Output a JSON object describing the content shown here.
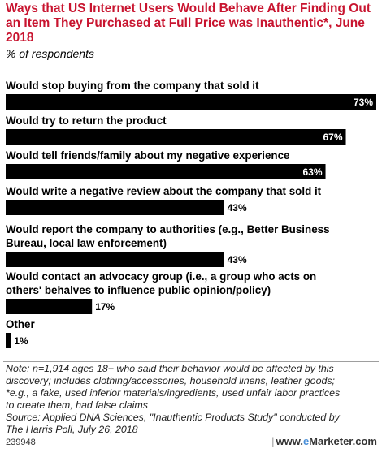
{
  "header": {
    "title": "Ways that US Internet Users Would Behave After Finding Out an Item They Purchased at Full Price was Inauthentic*, June 2018",
    "subtitle": "% of respondents"
  },
  "chart_data": {
    "type": "bar",
    "orientation": "horizontal",
    "categories": [
      [
        "Would stop buying from the company that sold it"
      ],
      [
        "Would try to return the product"
      ],
      [
        "Would tell friends/family about my negative experience"
      ],
      [
        "Would write a negative review about the company that sold it"
      ],
      [
        "Would report the company to authorities (e.g., Better Business",
        "Bureau, local law enforcement)"
      ],
      [
        "Would contact an advocacy group (i.e., a group who acts on",
        "others' behalves to influence public opinion/policy)"
      ],
      [
        "Other"
      ]
    ],
    "values": [
      73,
      67,
      63,
      43,
      43,
      17,
      1
    ],
    "value_labels": [
      "73%",
      "67%",
      "63%",
      "43%",
      "43%",
      "17%",
      "1%"
    ],
    "xlim": [
      0,
      73
    ],
    "bar_color": "#000000",
    "grid": false,
    "legend": "none"
  },
  "footer": {
    "note_lines": [
      "Note: n=1,914 ages 18+ who said their behavior would be affected by this",
      "discovery; includes clothing/accessories, household linens, leather goods;",
      "*e.g., a fake, used inferior materials/ingredients, used unfair labor practices",
      "to create them, had false claims",
      "Source: Applied DNA Sciences, \"Inauthentic Products Study\" conducted by",
      "The Harris Poll, July 26, 2018"
    ],
    "chart_id": "239948",
    "brand_prefix": "www.",
    "brand_e": "e",
    "brand_suffix": "Marketer.com"
  },
  "colors": {
    "title": "#c8142f",
    "bar": "#000000",
    "bar_label_inside": "#ffffff",
    "bar_label_outside": "#000000"
  }
}
